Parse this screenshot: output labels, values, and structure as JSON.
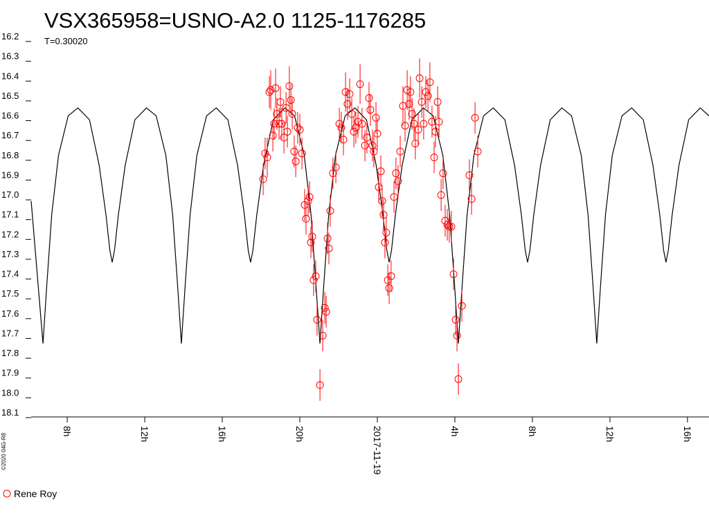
{
  "chart_data": {
    "type": "scatter",
    "title": "VSX365958=USNO-A2.0 1125-1176285",
    "subtitle": "T=0.30020",
    "credit": "©2020 04G-R8",
    "y_inverted": true,
    "xlim": [
      6.14,
      41.11
    ],
    "ylim": [
      16.2,
      18.1
    ],
    "xticks": [
      {
        "value": 8,
        "label": "8h"
      },
      {
        "value": 12,
        "label": "12h"
      },
      {
        "value": 16,
        "label": "16h"
      },
      {
        "value": 20,
        "label": "20h"
      },
      {
        "value": 24,
        "label": "2017-11-19"
      },
      {
        "value": 28,
        "label": "4h"
      },
      {
        "value": 32,
        "label": "8h"
      },
      {
        "value": 36,
        "label": "12h"
      },
      {
        "value": 40,
        "label": "16h"
      }
    ],
    "yticks": [
      16.2,
      16.3,
      16.4,
      16.5,
      16.6,
      16.7,
      16.8,
      16.9,
      {
        "value": 17,
        "label": "17.0"
      },
      17.1,
      17.2,
      17.3,
      17.4,
      17.5,
      17.6,
      17.7,
      17.8,
      17.9,
      {
        "value": 18,
        "label": "18.0"
      },
      18.1
    ],
    "series": [
      {
        "type": "line",
        "color": "#000000",
        "x": [
          6.14,
          6.75,
          6.95,
          7.2,
          7.55,
          8.05,
          8.55,
          9.15,
          9.65,
          10.0,
          10.2,
          10.32,
          10.44,
          10.64,
          10.99,
          11.49,
          12.09,
          12.59,
          13.09,
          13.44,
          13.69,
          13.89,
          14.09,
          14.34,
          14.69,
          15.19,
          15.69,
          16.29,
          16.79,
          17.14,
          17.34,
          17.46,
          17.58,
          17.78,
          18.13,
          18.63,
          19.23,
          19.73,
          20.23,
          20.58,
          20.83,
          21.04,
          21.24,
          21.49,
          21.84,
          22.34,
          22.84,
          23.44,
          23.94,
          24.29,
          24.49,
          24.61,
          24.73,
          24.93,
          25.28,
          25.78,
          26.38,
          26.88,
          27.38,
          27.73,
          27.98,
          28.18,
          28.38,
          28.63,
          28.98,
          29.48,
          29.98,
          30.58,
          31.08,
          31.43,
          31.63,
          31.75,
          31.87,
          32.07,
          32.42,
          32.92,
          33.52,
          34.02,
          34.52,
          34.87,
          35.12,
          35.32,
          35.52,
          35.77,
          36.12,
          36.62,
          37.12,
          37.72,
          38.22,
          38.57,
          38.77,
          38.89,
          39.01,
          39.21,
          39.56,
          40.06,
          40.66,
          41.11
        ],
        "values": [
          17.03,
          17.75,
          17.45,
          17.1,
          16.8,
          16.6,
          16.56,
          16.62,
          16.85,
          17.1,
          17.28,
          17.34,
          17.28,
          17.1,
          16.85,
          16.62,
          16.56,
          16.6,
          16.8,
          17.1,
          17.45,
          17.75,
          17.45,
          17.1,
          16.8,
          16.6,
          16.56,
          16.62,
          16.85,
          17.1,
          17.28,
          17.34,
          17.28,
          17.1,
          16.85,
          16.62,
          16.56,
          16.6,
          16.8,
          17.1,
          17.45,
          17.75,
          17.45,
          17.1,
          16.8,
          16.6,
          16.56,
          16.62,
          16.85,
          17.1,
          17.28,
          17.34,
          17.28,
          17.1,
          16.85,
          16.62,
          16.56,
          16.6,
          16.8,
          17.1,
          17.45,
          17.75,
          17.45,
          17.1,
          16.8,
          16.6,
          16.56,
          16.62,
          16.85,
          17.1,
          17.28,
          17.34,
          17.28,
          17.1,
          16.85,
          16.62,
          16.56,
          16.6,
          16.8,
          17.1,
          17.45,
          17.75,
          17.45,
          17.1,
          16.8,
          16.6,
          16.56,
          16.62,
          16.85,
          17.1,
          17.28,
          17.34,
          17.28,
          17.1,
          16.85,
          16.62,
          16.56,
          16.6
        ]
      },
      {
        "type": "errorbar",
        "name": "Rene Roy",
        "color": "#ff0000",
        "x": [
          18.11,
          18.21,
          18.32,
          18.43,
          18.5,
          18.61,
          18.68,
          18.75,
          18.82,
          18.93,
          19.0,
          19.07,
          19.18,
          19.29,
          19.36,
          19.46,
          19.54,
          19.61,
          19.71,
          19.79,
          19.89,
          20.0,
          20.11,
          20.25,
          20.32,
          20.43,
          20.5,
          20.57,
          20.64,
          20.71,
          20.82,
          20.89,
          21.04,
          21.18,
          21.29,
          21.36,
          21.43,
          21.5,
          21.57,
          21.71,
          21.86,
          22.04,
          22.14,
          22.25,
          22.36,
          22.46,
          22.57,
          22.68,
          22.79,
          22.89,
          23.0,
          23.11,
          23.21,
          23.36,
          23.46,
          23.57,
          23.64,
          23.75,
          23.82,
          23.93,
          24.0,
          24.07,
          24.18,
          24.25,
          24.32,
          24.39,
          24.46,
          24.54,
          24.61,
          24.71,
          24.86,
          24.96,
          25.07,
          25.18,
          25.32,
          25.43,
          25.54,
          25.64,
          25.71,
          25.79,
          25.89,
          25.96,
          26.11,
          26.18,
          26.29,
          26.39,
          26.5,
          26.61,
          26.71,
          26.82,
          26.93,
          27.0,
          27.11,
          27.18,
          27.29,
          27.39,
          27.5,
          27.61,
          27.71,
          27.82,
          27.93,
          28.04,
          28.11,
          28.18,
          28.36,
          28.75,
          28.86,
          29.04,
          29.18
        ],
        "values": [
          16.92,
          16.79,
          16.81,
          16.48,
          16.47,
          16.7,
          16.64,
          16.46,
          16.59,
          16.64,
          16.53,
          16.64,
          16.71,
          16.56,
          16.68,
          16.45,
          16.52,
          16.59,
          16.78,
          16.83,
          16.66,
          16.67,
          16.79,
          17.05,
          17.12,
          17.03,
          17.01,
          17.24,
          17.21,
          17.43,
          17.41,
          17.63,
          17.96,
          17.71,
          17.57,
          17.59,
          17.22,
          17.27,
          17.08,
          16.89,
          16.86,
          16.64,
          16.66,
          16.72,
          16.48,
          16.54,
          16.49,
          16.59,
          16.68,
          16.66,
          16.63,
          16.44,
          16.64,
          16.75,
          16.71,
          16.51,
          16.57,
          16.75,
          16.78,
          16.61,
          16.69,
          16.96,
          16.88,
          17.03,
          17.1,
          17.24,
          17.19,
          17.43,
          17.47,
          17.41,
          17.01,
          16.89,
          16.93,
          16.78,
          16.55,
          16.65,
          16.47,
          16.54,
          16.48,
          16.59,
          16.64,
          16.74,
          16.67,
          16.41,
          16.53,
          16.64,
          16.48,
          16.5,
          16.43,
          16.63,
          16.81,
          16.68,
          16.53,
          16.63,
          17.0,
          16.89,
          17.13,
          17.15,
          17.16,
          17.16,
          17.4,
          17.63,
          17.71,
          17.93,
          17.56,
          16.9,
          17.02,
          16.61,
          16.78
        ],
        "errors": [
          0.08,
          0.08,
          0.1,
          0.08,
          0.1,
          0.08,
          0.08,
          0.1,
          0.08,
          0.08,
          0.08,
          0.08,
          0.08,
          0.08,
          0.08,
          0.1,
          0.08,
          0.08,
          0.08,
          0.08,
          0.08,
          0.08,
          0.08,
          0.08,
          0.08,
          0.08,
          0.08,
          0.08,
          0.08,
          0.08,
          0.08,
          0.08,
          0.08,
          0.08,
          0.08,
          0.08,
          0.08,
          0.08,
          0.08,
          0.08,
          0.08,
          0.08,
          0.08,
          0.08,
          0.1,
          0.08,
          0.08,
          0.08,
          0.08,
          0.08,
          0.08,
          0.1,
          0.08,
          0.08,
          0.08,
          0.08,
          0.08,
          0.08,
          0.08,
          0.08,
          0.08,
          0.08,
          0.08,
          0.08,
          0.08,
          0.08,
          0.08,
          0.08,
          0.08,
          0.08,
          0.08,
          0.08,
          0.08,
          0.08,
          0.1,
          0.08,
          0.1,
          0.08,
          0.08,
          0.08,
          0.08,
          0.08,
          0.08,
          0.1,
          0.08,
          0.08,
          0.08,
          0.08,
          0.1,
          0.08,
          0.08,
          0.08,
          0.08,
          0.08,
          0.08,
          0.08,
          0.08,
          0.08,
          0.08,
          0.08,
          0.08,
          0.08,
          0.08,
          0.08,
          0.08,
          0.08,
          0.08,
          0.08,
          0.08
        ]
      }
    ]
  }
}
